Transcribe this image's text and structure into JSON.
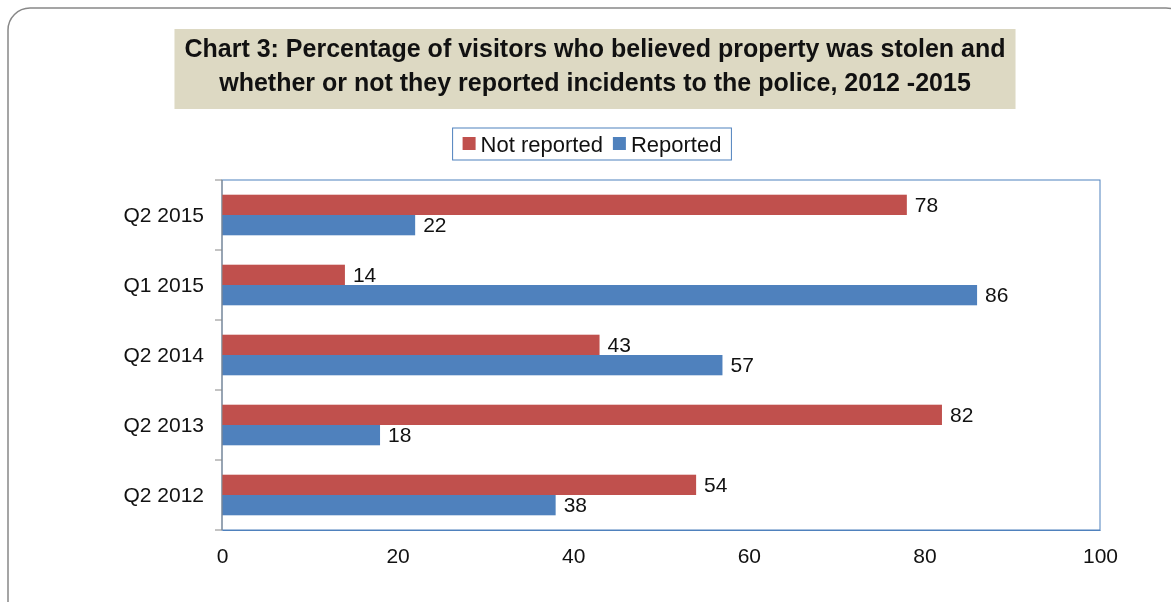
{
  "chart_data": {
    "type": "bar",
    "orientation": "horizontal",
    "title": "Chart 3: Percentage of visitors who believed property was stolen and whether or not they reported incidents to the police, 2012 -2015",
    "categories": [
      "Q2 2015",
      "Q1 2015",
      "Q2 2014",
      "Q2 2013",
      "Q2 2012"
    ],
    "series": [
      {
        "name": "Not reported",
        "color": "#c0504d",
        "values": [
          78,
          14,
          43,
          82,
          54
        ]
      },
      {
        "name": "Reported",
        "color": "#4f81bd",
        "values": [
          22,
          86,
          57,
          18,
          38
        ]
      }
    ],
    "xlim": [
      0,
      100
    ],
    "xticks": [
      0,
      20,
      40,
      60,
      80,
      100
    ],
    "grid": false,
    "legend": "top",
    "data_labels": true
  }
}
